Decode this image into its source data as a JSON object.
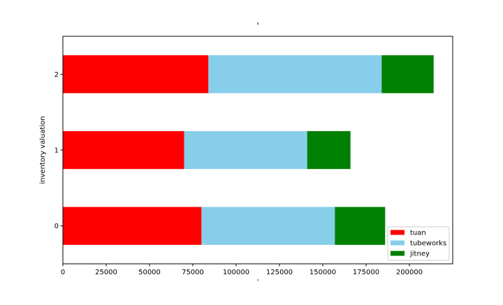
{
  "chart_data": {
    "type": "bar",
    "orientation": "horizontal",
    "stacked": true,
    "title": "'",
    "xlabel": "'",
    "ylabel": "inventory valuation",
    "categories": [
      "0",
      "1",
      "2"
    ],
    "series": [
      {
        "name": "tuan",
        "color": "#ff0000",
        "values": [
          80000,
          70000,
          84000
        ]
      },
      {
        "name": "tubeworks",
        "color": "#87ceeb",
        "values": [
          77000,
          71000,
          100000
        ]
      },
      {
        "name": "jitney",
        "color": "#008000",
        "values": [
          29000,
          25000,
          30000
        ]
      }
    ],
    "xlim": [
      0,
      225000
    ],
    "x_ticks": [
      0,
      25000,
      50000,
      75000,
      100000,
      125000,
      150000,
      175000,
      200000
    ],
    "ylim": [
      -0.5,
      2.5
    ],
    "legend_position": "lower right",
    "grid": false
  }
}
